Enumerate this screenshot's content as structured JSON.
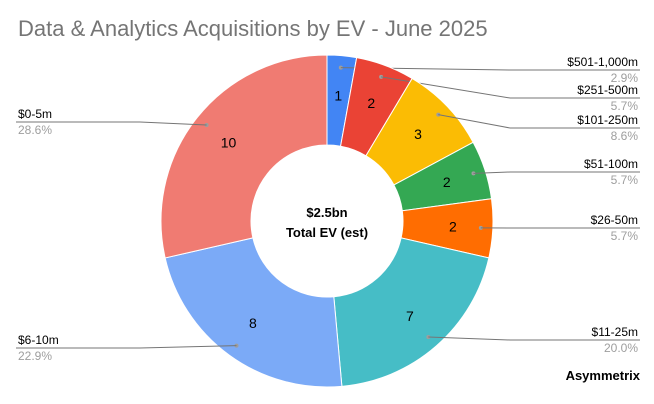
{
  "chart_data": {
    "type": "pie",
    "title": "Data & Analytics Acquisitions by EV - June 2025",
    "center_value": "$2.5bn",
    "center_label": "Total EV (est)",
    "slices": [
      {
        "label": "$501-1,000m",
        "value": 1,
        "percent": "2.9%",
        "color": "#4285f4"
      },
      {
        "label": "$251-500m",
        "value": 2,
        "percent": "5.7%",
        "color": "#ea4335"
      },
      {
        "label": "$101-250m",
        "value": 3,
        "percent": "8.6%",
        "color": "#fbbc04"
      },
      {
        "label": "$51-100m",
        "value": 2,
        "percent": "5.7%",
        "color": "#34a853"
      },
      {
        "label": "$26-50m",
        "value": 2,
        "percent": "5.7%",
        "color": "#ff6d01"
      },
      {
        "label": "$11-25m",
        "value": 7,
        "percent": "20.0%",
        "color": "#46bdc6"
      },
      {
        "label": "$6-10m",
        "value": 8,
        "percent": "22.9%",
        "color": "#7baaf7"
      },
      {
        "label": "$0-5m",
        "value": 10,
        "percent": "28.6%",
        "color": "#f07b72"
      }
    ],
    "legend": "callouts"
  },
  "branding": "Asymmetrix"
}
